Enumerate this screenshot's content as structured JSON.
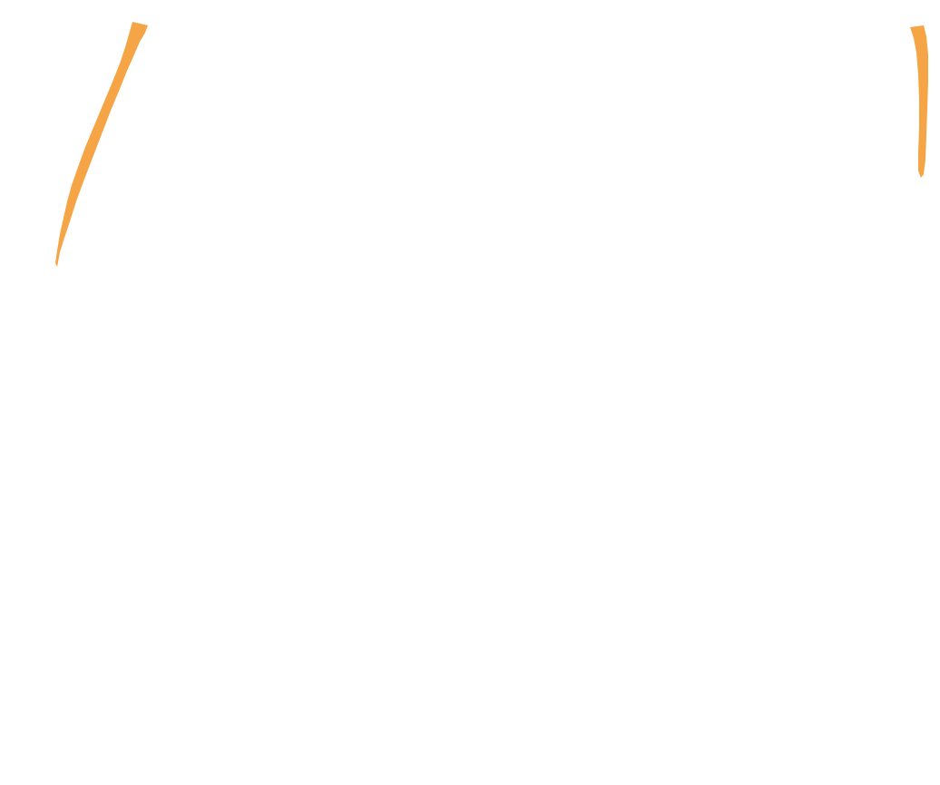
{
  "background_color": "#ffffff",
  "strokes": [
    {
      "name": "left-diagonal-brush-stroke",
      "color": "#f5a545"
    },
    {
      "name": "right-vertical-brush-stroke",
      "color": "#f5a545"
    }
  ]
}
